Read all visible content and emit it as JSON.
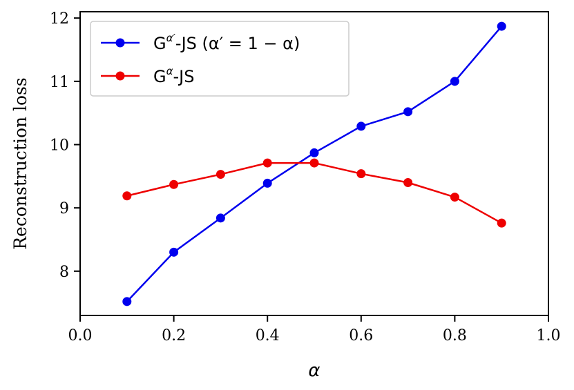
{
  "chart_data": {
    "type": "line",
    "title": "",
    "xlabel": "α",
    "ylabel": "Reconstruction loss",
    "xlim": [
      0.0,
      1.0
    ],
    "ylim": [
      7.3,
      12.1
    ],
    "xticks": [
      0.0,
      0.2,
      0.4,
      0.6,
      0.8,
      1.0
    ],
    "xtick_labels": [
      "0.0",
      "0.2",
      "0.4",
      "0.6",
      "0.8",
      "1.0"
    ],
    "yticks": [
      8,
      9,
      10,
      11,
      12
    ],
    "ytick_labels": [
      "8",
      "9",
      "10",
      "11",
      "12"
    ],
    "grid": false,
    "legend_position": "top-left",
    "x": [
      0.1,
      0.2,
      0.3,
      0.4,
      0.5,
      0.6,
      0.7,
      0.8,
      0.9
    ],
    "series": [
      {
        "name": "G^{α′}-JS (α′ = 1 − α)",
        "legend_base": "G",
        "legend_sup": "α′",
        "legend_rest": "-JS (α′ = 1 − α)",
        "color": "#0000ee",
        "values": [
          7.52,
          8.3,
          8.84,
          9.39,
          9.87,
          10.29,
          10.52,
          11.0,
          11.87
        ]
      },
      {
        "name": "G^{α}-JS",
        "legend_base": "G",
        "legend_sup": "α",
        "legend_rest": "-JS",
        "color": "#ee0000",
        "values": [
          9.19,
          9.37,
          9.53,
          9.71,
          9.71,
          9.54,
          9.4,
          9.17,
          8.76
        ]
      }
    ]
  }
}
